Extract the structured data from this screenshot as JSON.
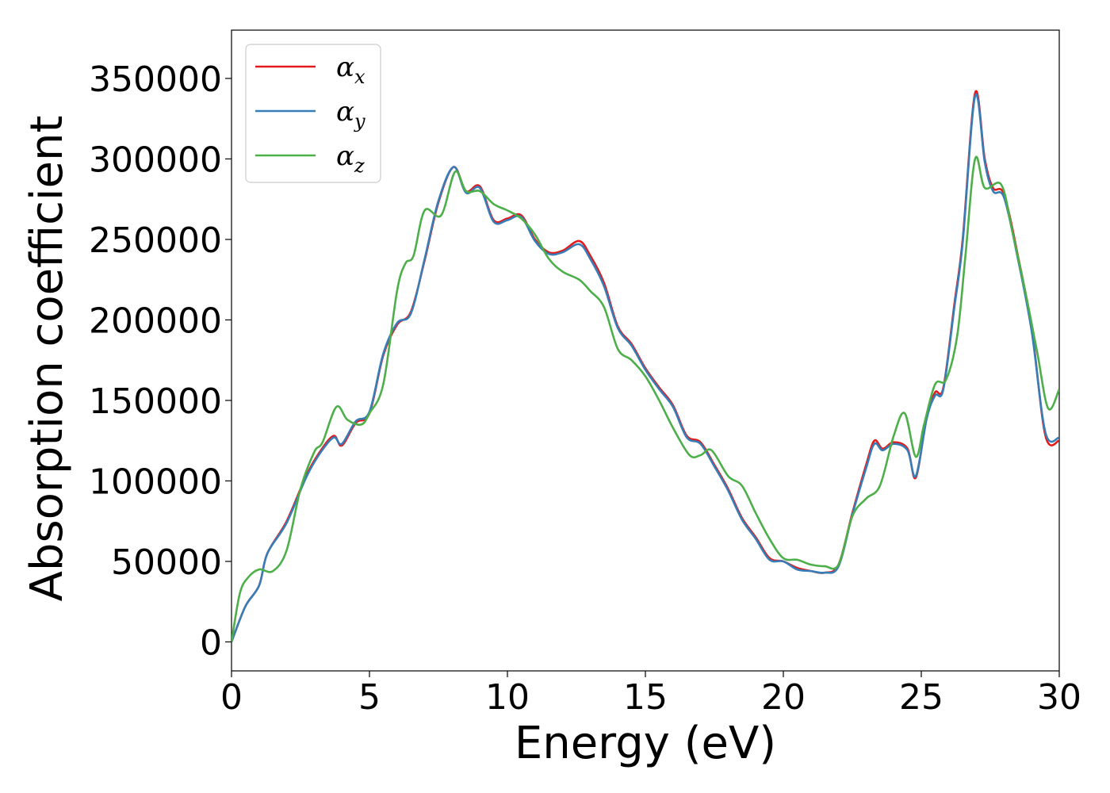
{
  "chart_data": {
    "type": "line",
    "xlabel": "Energy (eV)",
    "ylabel": "Absorption coefficient",
    "xlim": [
      0,
      30
    ],
    "ylim": [
      -18000,
      380000
    ],
    "xticks": [
      0,
      5,
      10,
      15,
      20,
      25,
      30
    ],
    "yticks": [
      0,
      50000,
      100000,
      150000,
      200000,
      250000,
      300000,
      350000
    ],
    "grid": false,
    "legend_position": "top-left",
    "series": [
      {
        "name": "αx",
        "symbol": "α",
        "subscript": "x",
        "color": "#e41a1c",
        "x": [
          0,
          0.5,
          1.0,
          1.3,
          2.0,
          2.7,
          3.2,
          3.7,
          4.0,
          4.5,
          5.0,
          5.5,
          6.0,
          6.5,
          7.0,
          7.5,
          8.05,
          8.5,
          9.0,
          9.5,
          10.0,
          10.5,
          11.0,
          11.5,
          12.0,
          12.6,
          13.0,
          13.5,
          14.0,
          14.5,
          15.0,
          15.5,
          16.0,
          16.5,
          17.0,
          17.5,
          18.0,
          18.5,
          19.0,
          19.5,
          20.0,
          20.5,
          21.0,
          21.5,
          22.0,
          22.5,
          23.0,
          23.3,
          23.6,
          24.0,
          24.5,
          24.8,
          25.2,
          25.5,
          25.8,
          26.2,
          26.5,
          26.95,
          27.3,
          27.6,
          28.0,
          28.5,
          29.0,
          29.5,
          30.0
        ],
        "y": [
          0,
          22000,
          35000,
          55000,
          75000,
          103000,
          118000,
          128000,
          122000,
          136000,
          142000,
          178000,
          197000,
          205000,
          237000,
          273000,
          295000,
          280000,
          283000,
          262000,
          263000,
          265000,
          250000,
          242000,
          243000,
          249000,
          240000,
          223000,
          196000,
          185000,
          170000,
          158000,
          147000,
          128000,
          124000,
          110000,
          95000,
          77000,
          65000,
          52000,
          50000,
          46000,
          44000,
          43000,
          48000,
          80000,
          110000,
          125000,
          120000,
          124000,
          120000,
          102000,
          140000,
          155000,
          158000,
          210000,
          250000,
          341000,
          300000,
          282000,
          278000,
          240000,
          195000,
          128000,
          125000
        ]
      },
      {
        "name": "αy",
        "symbol": "α",
        "subscript": "y",
        "color": "#377eb8",
        "x": [
          0,
          0.5,
          1.0,
          1.3,
          2.0,
          2.7,
          3.2,
          3.7,
          4.0,
          4.5,
          5.0,
          5.5,
          6.0,
          6.5,
          7.0,
          7.5,
          8.05,
          8.5,
          9.0,
          9.5,
          10.0,
          10.5,
          11.0,
          11.5,
          12.0,
          12.6,
          13.0,
          13.5,
          14.0,
          14.5,
          15.0,
          15.5,
          16.0,
          16.5,
          17.0,
          17.5,
          18.0,
          18.5,
          19.0,
          19.5,
          20.0,
          20.5,
          21.0,
          21.5,
          22.0,
          22.5,
          23.0,
          23.3,
          23.6,
          24.0,
          24.5,
          24.8,
          25.2,
          25.5,
          25.8,
          26.2,
          26.5,
          26.95,
          27.3,
          27.6,
          28.0,
          28.5,
          29.0,
          29.5,
          30.0
        ],
        "y": [
          0,
          22000,
          35000,
          55000,
          74000,
          102000,
          117000,
          127000,
          123000,
          137000,
          143000,
          179000,
          198000,
          204000,
          238000,
          274000,
          295000,
          279000,
          282000,
          261000,
          262000,
          264000,
          249000,
          241000,
          242000,
          247000,
          238000,
          221000,
          195000,
          184000,
          169000,
          157000,
          146000,
          127000,
          123000,
          109000,
          94000,
          76000,
          64000,
          51000,
          50000,
          45000,
          44000,
          43000,
          47000,
          79000,
          108000,
          123000,
          119000,
          123000,
          119000,
          103000,
          139000,
          153000,
          157000,
          208000,
          248000,
          339000,
          298000,
          280000,
          276000,
          238000,
          193000,
          130000,
          127000
        ]
      },
      {
        "name": "αz",
        "symbol": "α",
        "subscript": "z",
        "color": "#4daf4a",
        "x": [
          0,
          0.3,
          0.6,
          1.0,
          1.5,
          2.0,
          2.5,
          3.0,
          3.3,
          3.8,
          4.2,
          4.7,
          5.0,
          5.5,
          6.0,
          6.3,
          6.6,
          7.0,
          7.6,
          8.1,
          8.5,
          9.0,
          9.5,
          10.0,
          10.5,
          11.0,
          11.5,
          12.0,
          12.6,
          13.0,
          13.5,
          14.0,
          14.5,
          15.0,
          15.5,
          16.0,
          16.6,
          17.0,
          17.4,
          18.0,
          18.5,
          19.0,
          19.5,
          20.0,
          20.5,
          21.0,
          21.5,
          22.0,
          22.5,
          23.0,
          23.5,
          24.0,
          24.4,
          24.8,
          25.1,
          25.5,
          25.9,
          26.3,
          26.6,
          26.95,
          27.3,
          27.9,
          28.3,
          28.8,
          29.2,
          29.6,
          30.0
        ],
        "y": [
          0,
          30000,
          40000,
          45000,
          44000,
          57000,
          95000,
          118000,
          124000,
          146000,
          138000,
          135000,
          142000,
          160000,
          218000,
          235000,
          240000,
          268000,
          265000,
          292000,
          280000,
          280000,
          272000,
          268000,
          263000,
          253000,
          238000,
          230000,
          225000,
          218000,
          208000,
          182000,
          175000,
          165000,
          150000,
          133000,
          116000,
          116000,
          119000,
          103000,
          97000,
          80000,
          64000,
          52000,
          51000,
          48000,
          47000,
          48000,
          78000,
          89000,
          97000,
          128000,
          142000,
          115000,
          135000,
          160000,
          163000,
          190000,
          240000,
          300000,
          282000,
          284000,
          255000,
          215000,
          180000,
          145000,
          157000
        ]
      }
    ]
  }
}
